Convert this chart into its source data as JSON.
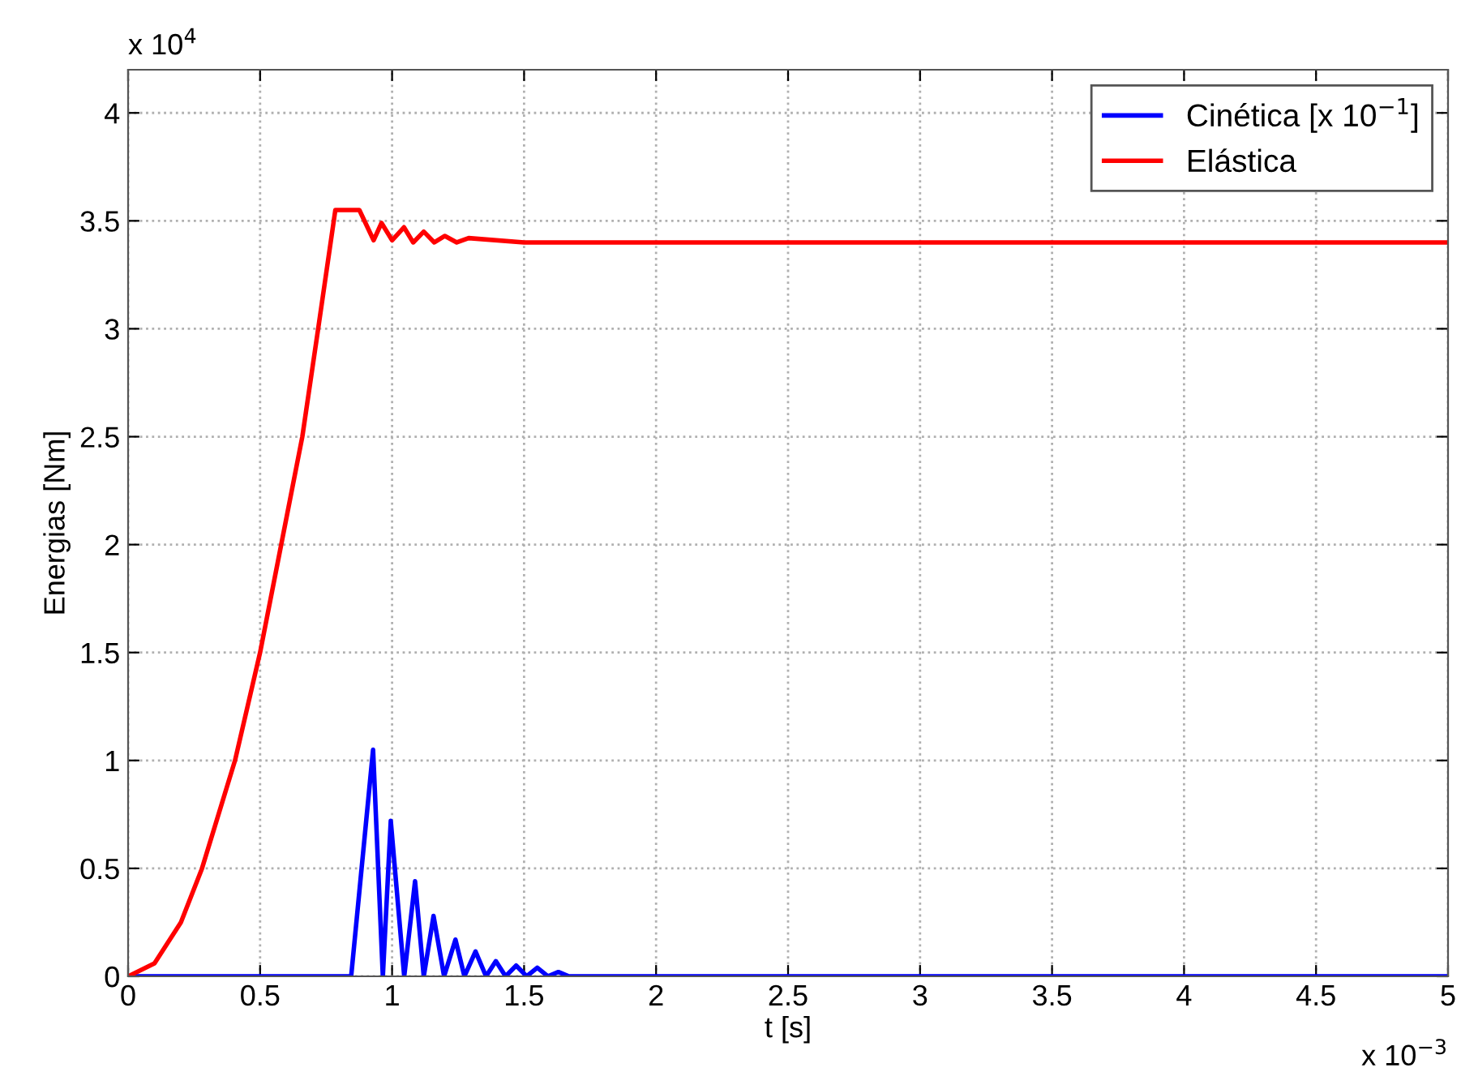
{
  "chart_data": {
    "type": "line",
    "xlabel": "t [s]",
    "ylabel": "Energias [Nm]",
    "annotations": [
      "x 10$^{4}$",
      "x 10$^{−3}$"
    ],
    "xlim": [
      0,
      5
    ],
    "xticks": [
      0,
      0.5,
      1,
      1.5,
      2,
      2.5,
      3,
      3.5,
      4,
      4.5,
      5
    ],
    "ylim": [
      0,
      4.2
    ],
    "yticks": [
      0,
      0.5,
      1,
      1.5,
      2,
      2.5,
      3,
      3.5,
      4
    ],
    "grid": true,
    "legend": "top right",
    "line_style": "solid",
    "marker": "none",
    "series": [
      {
        "name": "Cinética [x 10$^{−1}$]",
        "color": "#0000ff",
        "x": [
          0,
          0.845,
          0.928,
          0.965,
          0.995,
          1.046,
          1.087,
          1.12,
          1.157,
          1.197,
          1.24,
          1.274,
          1.316,
          1.356,
          1.393,
          1.43,
          1.47,
          1.51,
          1.55,
          1.59,
          1.63,
          1.67,
          5
        ],
        "values": [
          0,
          0,
          1.05,
          0,
          0.72,
          0,
          0.44,
          0,
          0.28,
          0,
          0.17,
          0,
          0.115,
          0,
          0.07,
          0,
          0.05,
          0,
          0.04,
          0,
          0.02,
          0,
          0
        ]
      },
      {
        "name": "Elástica",
        "color": "#ff0000",
        "x": [
          0,
          0.1,
          0.2,
          0.28,
          0.405,
          0.5,
          0.58,
          0.66,
          0.72,
          0.785,
          0.876,
          0.93,
          0.96,
          1.0,
          1.045,
          1.08,
          1.12,
          1.16,
          1.2,
          1.245,
          1.29,
          1.5,
          5
        ],
        "values": [
          0,
          0.06,
          0.25,
          0.5,
          1,
          1.5,
          2,
          2.5,
          3,
          3.55,
          3.55,
          3.41,
          3.49,
          3.41,
          3.47,
          3.4,
          3.45,
          3.4,
          3.43,
          3.4,
          3.42,
          3.4,
          3.4
        ]
      }
    ]
  }
}
